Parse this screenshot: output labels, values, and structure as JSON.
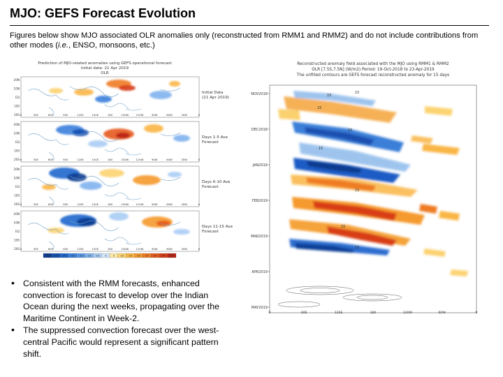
{
  "header": {
    "title": "MJO: GEFS Forecast Evolution",
    "subtitle_a": "Figures below show MJO associated OLR anomalies only (reconstructed from RMM1 and RMM2) and do not include contributions from other modes (",
    "subtitle_ie": "i.e.",
    "subtitle_b": ", ENSO, monsoons, etc.)"
  },
  "left_figure": {
    "title_line1": "Prediction of MJO-related anomalies using GEFS operational forecast",
    "title_line2": "Initial date: 21 Apr 2019",
    "title_line3": "OLR",
    "panels": [
      {
        "label1": "Initial Data",
        "label2": "(21 Apr 2019)"
      },
      {
        "label1": "Days 1-5 Ave",
        "label2": "Forecast"
      },
      {
        "label1": "Days 6-10 Ave",
        "label2": "Forecast"
      },
      {
        "label1": "Days 11-15 Ave",
        "label2": "Forecast"
      }
    ],
    "lat_ticks": [
      "20N",
      "10N",
      "EQ",
      "10S",
      "20S"
    ],
    "lon_ticks": [
      "0",
      "30E",
      "60E",
      "90E",
      "120E",
      "150E",
      "180",
      "150W",
      "120W",
      "90W",
      "60W",
      "30W",
      "0"
    ],
    "colorbar_labels": [
      "-40",
      "-35",
      "-30",
      "-25",
      "-20",
      "-15",
      "-10",
      "-5",
      "5",
      "10",
      "15",
      "20",
      "25",
      "30",
      "35",
      "40"
    ],
    "colorbar_colors": [
      "#0b3d91",
      "#1450b0",
      "#1e66cc",
      "#3a80dc",
      "#5898e6",
      "#7fb2ee",
      "#a8ccf4",
      "#d2e6fa",
      "#fde9a6",
      "#fcd371",
      "#f9b545",
      "#f59a2e",
      "#ef7a24",
      "#e65a1c",
      "#d63c16",
      "#b82212"
    ]
  },
  "right_figure": {
    "title_line1": "Reconstructed anomaly field associated with the MJO using RMM1 & RMM2",
    "title_line2": "OLR [7.5S,7.5N] (W/m2)  Period: 19-Oct-2018 to 23-Apr-2019",
    "title_line3": "The unfilled contours are GEFS forecast reconstructed anomaly for 15 days",
    "date_labels": [
      "NOV2018",
      "DEC2018",
      "JAN2019",
      "FEB2019",
      "MAR2019",
      "APR2019",
      "MAY2019"
    ],
    "lon_ticks": [
      "0",
      "60E",
      "120E",
      "180",
      "120W",
      "60W",
      "0"
    ],
    "contour_label": "15"
  },
  "bullets": [
    {
      "text": "Consistent with the RMM forecasts, enhanced convection is forecast to develop over the Indian Ocean during the next weeks, propagating over the Maritime Continent in Week-2."
    },
    {
      "text": "The suppressed convection forecast over the west-central Pacific would represent a significant pattern shift."
    }
  ],
  "colors": {
    "enhanced": "#3a80dc",
    "suppressed": "#e65a1c",
    "map_lines": "#6e9fc8"
  }
}
